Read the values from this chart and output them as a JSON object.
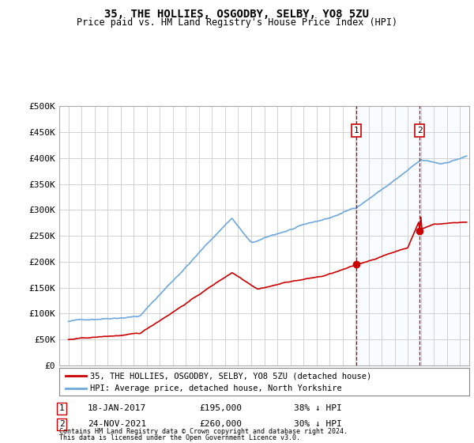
{
  "title1": "35, THE HOLLIES, OSGODBY, SELBY, YO8 5ZU",
  "title2": "Price paid vs. HM Land Registry's House Price Index (HPI)",
  "ylabel_ticks": [
    "£0",
    "£50K",
    "£100K",
    "£150K",
    "£200K",
    "£250K",
    "£300K",
    "£350K",
    "£400K",
    "£450K",
    "£500K"
  ],
  "ytick_vals": [
    0,
    50000,
    100000,
    150000,
    200000,
    250000,
    300000,
    350000,
    400000,
    450000,
    500000
  ],
  "ylim": [
    0,
    500000
  ],
  "hpi_color": "#6fa8dc",
  "price_color": "#cc0000",
  "legend_line1": "35, THE HOLLIES, OSGODBY, SELBY, YO8 5ZU (detached house)",
  "legend_line2": "HPI: Average price, detached house, North Yorkshire",
  "table_row1": [
    "1",
    "18-JAN-2017",
    "£195,000",
    "38% ↓ HPI"
  ],
  "table_row2": [
    "2",
    "24-NOV-2021",
    "£260,000",
    "30% ↓ HPI"
  ],
  "footnote1": "Contains HM Land Registry data © Crown copyright and database right 2024.",
  "footnote2": "This data is licensed under the Open Government Licence v3.0.",
  "background_color": "#ffffff",
  "grid_color": "#cccccc",
  "shade_color": "#ddeeff"
}
